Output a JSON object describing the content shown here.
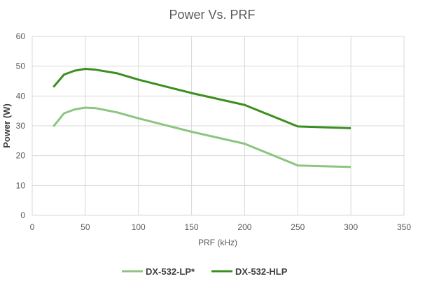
{
  "chart_data": {
    "type": "line",
    "title": "Power Vs. PRF",
    "xlabel": "PRF (kHz)",
    "ylabel": "Power (W)",
    "xlim": [
      0,
      350
    ],
    "ylim": [
      0,
      60
    ],
    "xticks": [
      0,
      50,
      100,
      150,
      200,
      250,
      300,
      350
    ],
    "yticks": [
      0,
      10,
      20,
      30,
      40,
      50,
      60
    ],
    "grid": true,
    "legend": "bottom",
    "x": [
      20,
      30,
      40,
      50,
      60,
      80,
      100,
      150,
      200,
      250,
      300
    ],
    "series": [
      {
        "name": "DX-532-LP*",
        "color": "#8cc57f",
        "values": [
          29.8,
          34.2,
          35.5,
          36.1,
          35.9,
          34.5,
          32.5,
          28.0,
          24.0,
          16.7,
          16.2
        ]
      },
      {
        "name": "DX-532-HLP",
        "color": "#3a8f1e",
        "values": [
          43.0,
          47.2,
          48.5,
          49.1,
          48.8,
          47.6,
          45.5,
          41.0,
          37.0,
          29.8,
          29.2
        ]
      }
    ]
  }
}
